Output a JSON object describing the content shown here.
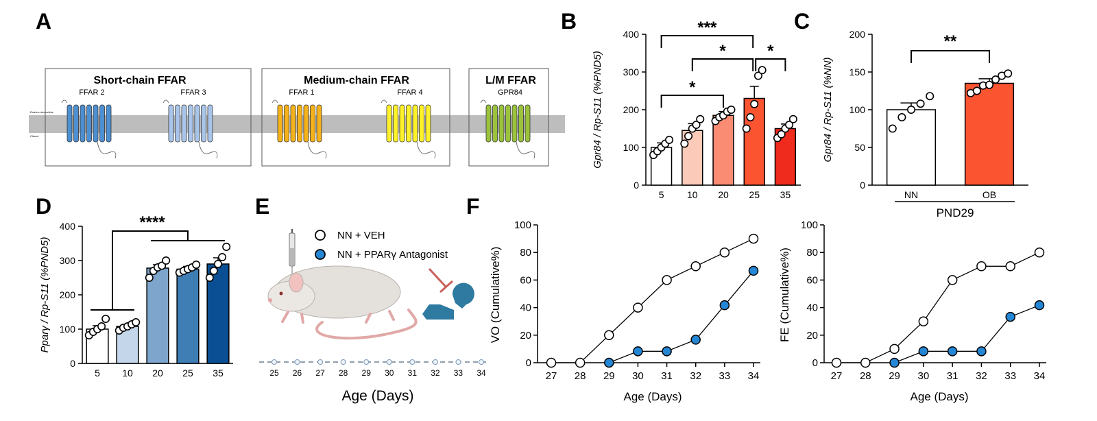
{
  "panel_letters": {
    "A": "A",
    "B": "B",
    "C": "C",
    "D": "D",
    "E": "E",
    "F": "F"
  },
  "panelA": {
    "boxes": [
      {
        "title": "Short-chain FFAR",
        "receptors": [
          "FFAR 2",
          "FFAR 3"
        ],
        "colors": [
          "#4d8fd0",
          "#a9c6ea"
        ]
      },
      {
        "title": "Medium-chain FFAR",
        "receptors": [
          "FFAR 1",
          "FFAR 4"
        ],
        "colors": [
          "#f6b21a",
          "#fff22a"
        ]
      },
      {
        "title": "L/M FFAR",
        "receptors": [
          "GPR84"
        ],
        "colors": [
          "#9ac23c"
        ]
      }
    ],
    "membrane_labels": {
      "top": "Exterior des cellule",
      "bottom": "Cltosol"
    }
  },
  "chart_data": [
    {
      "id": "B",
      "type": "bar",
      "categories": [
        "5",
        "10",
        "20",
        "25",
        "35"
      ],
      "values": [
        100,
        145,
        185,
        230,
        150
      ],
      "errors": [
        12,
        18,
        10,
        32,
        12
      ],
      "points": [
        [
          80,
          90,
          100,
          110,
          120
        ],
        [
          110,
          130,
          150,
          160,
          175
        ],
        [
          170,
          180,
          185,
          195,
          200
        ],
        [
          150,
          180,
          215,
          290,
          305
        ],
        [
          125,
          135,
          150,
          160,
          175
        ]
      ],
      "colors": [
        "#ffffff",
        "#fbcab9",
        "#f98c73",
        "#fa5431",
        "#ef2b1d"
      ],
      "ylabel": "Gpr84 / Rp-S11 (%PND5)",
      "ylim": [
        0,
        400
      ],
      "yticks": [
        0,
        100,
        200,
        300,
        400
      ],
      "significance": [
        {
          "from": "5",
          "to": "25",
          "label": "***"
        },
        {
          "from": "10",
          "to": "25",
          "label": "*"
        },
        {
          "from": "5",
          "to": "20",
          "label": "*"
        },
        {
          "from": "25",
          "to": "35",
          "label": "*"
        }
      ]
    },
    {
      "id": "C",
      "type": "bar",
      "categories": [
        "NN",
        "OB"
      ],
      "values": [
        100,
        135
      ],
      "errors": [
        9,
        6
      ],
      "points": [
        [
          75,
          90,
          100,
          108,
          118
        ],
        [
          122,
          125,
          132,
          133,
          140,
          145,
          148
        ]
      ],
      "colors": [
        "#ffffff",
        "#fa5431"
      ],
      "ylabel": "Gpr84 / Rp-S11 (%NN)",
      "ylim": [
        0,
        200
      ],
      "yticks": [
        0,
        50,
        100,
        150,
        200
      ],
      "group_label": "PND29",
      "significance": [
        {
          "from": "NN",
          "to": "OB",
          "label": "**"
        }
      ]
    },
    {
      "id": "D",
      "type": "bar",
      "categories": [
        "5",
        "10",
        "20",
        "25",
        "35"
      ],
      "values": [
        100,
        108,
        278,
        275,
        290
      ],
      "errors": [
        10,
        6,
        10,
        8,
        18
      ],
      "points": [
        [
          82,
          92,
          100,
          108,
          130
        ],
        [
          96,
          104,
          108,
          114,
          120
        ],
        [
          250,
          270,
          280,
          285,
          300
        ],
        [
          265,
          270,
          275,
          280,
          288
        ],
        [
          250,
          270,
          290,
          310,
          340
        ]
      ],
      "colors": [
        "#ffffff",
        "#c3d6ea",
        "#7ea6cc",
        "#3f7db5",
        "#0a4f93"
      ],
      "ylabel": "Pparγ / Rp-S11 (%PND5)",
      "ylim": [
        0,
        400
      ],
      "yticks": [
        0,
        100,
        200,
        300,
        400
      ],
      "significance": [
        {
          "from": "5-10",
          "to": "20-35",
          "label": "****"
        }
      ]
    },
    {
      "id": "F1",
      "type": "line",
      "x": [
        27,
        28,
        29,
        30,
        31,
        32,
        33,
        34
      ],
      "series": [
        {
          "name": "NN + VEH",
          "values": [
            0,
            0,
            20,
            40,
            60,
            70,
            80,
            90
          ],
          "color": "#ffffff"
        },
        {
          "name": "NN + PPARγ Antagonist",
          "x": [
            29,
            30,
            31,
            32,
            33,
            34
          ],
          "values": [
            0,
            8.3,
            8.3,
            16.7,
            41.7,
            66.7
          ],
          "color": "#2487d6"
        }
      ],
      "xlabel": "Age (Days)",
      "ylabel": "VO (Cumulative%)",
      "ylim": [
        0,
        100
      ],
      "yticks": [
        0,
        20,
        40,
        60,
        80,
        100
      ]
    },
    {
      "id": "F2",
      "type": "line",
      "x": [
        27,
        28,
        29,
        30,
        31,
        32,
        33,
        34
      ],
      "series": [
        {
          "name": "NN + VEH",
          "values": [
            0,
            0,
            10,
            30,
            60,
            70,
            70,
            80
          ],
          "color": "#ffffff"
        },
        {
          "name": "NN + PPARγ Antagonist",
          "x": [
            29,
            30,
            31,
            32,
            33,
            34
          ],
          "values": [
            0,
            8.3,
            8.3,
            8.3,
            33.3,
            41.7
          ],
          "color": "#2487d6"
        }
      ],
      "xlabel": "Age (Days)",
      "ylabel": "FE (Cumulative%)",
      "ylim": [
        0,
        100
      ],
      "yticks": [
        0,
        20,
        40,
        60,
        80,
        100
      ]
    }
  ],
  "panelE": {
    "legend": [
      "NN + VEH",
      "NN + PPARγ Antagonist"
    ],
    "legend_colors": [
      "#ffffff",
      "#2487d6"
    ],
    "days": [
      "25",
      "26",
      "27",
      "28",
      "29",
      "30",
      "31",
      "32",
      "33",
      "34"
    ],
    "xlabel": "Age (Days)"
  }
}
